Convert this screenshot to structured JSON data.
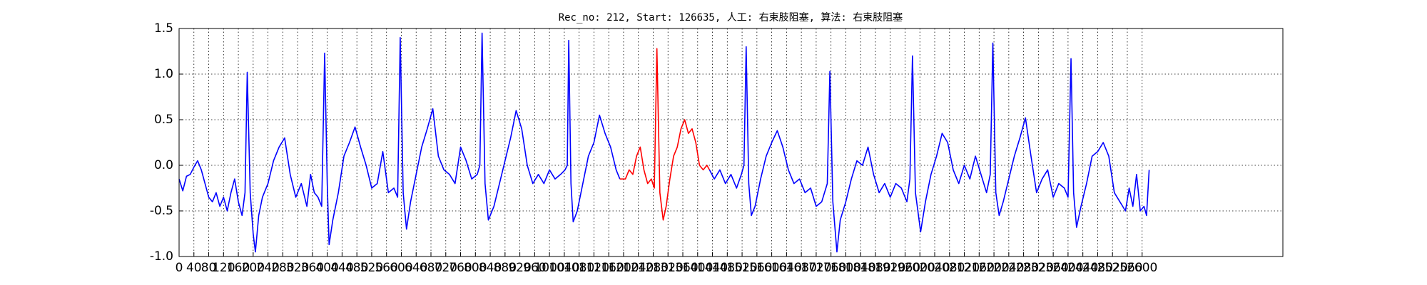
{
  "chart_data": {
    "type": "line",
    "title": "Rec_no: 212, Start: 126635, 人工: 右束肢阻塞, 算法: 右束肢阻塞",
    "grid": true,
    "xlim": [
      0,
      2980
    ],
    "ylim": [
      -1.0,
      1.5
    ],
    "yticks": [
      {
        "value": -1.0,
        "label": "-1.0"
      },
      -0.5,
      {
        "value": 0.0,
        "label": "0.0"
      },
      0.5,
      {
        "value": 1.0,
        "label": "1.0"
      },
      1.5
    ],
    "xticks": [
      0,
      40,
      80,
      120,
      160,
      200,
      240,
      280,
      320,
      360,
      400,
      440,
      480,
      520,
      560,
      600,
      640,
      680,
      720,
      760,
      800,
      840,
      880,
      920,
      960,
      1000,
      1040,
      1080,
      1120,
      1160,
      1200,
      1240,
      1280,
      1320,
      1360,
      1400,
      1440,
      1480,
      1520,
      1560,
      1600,
      1640,
      1680,
      1720,
      1760,
      1800,
      1840,
      1880,
      1920,
      1960,
      2000,
      2040,
      2080,
      2120,
      2160,
      2200,
      2240,
      2280,
      2320,
      2360,
      2400,
      2440,
      2480,
      2520,
      2560,
      2600
    ],
    "series": [
      {
        "color": "#0000ff",
        "x": [
          0,
          10,
          20,
          30,
          40,
          50,
          60,
          70,
          80,
          90,
          100,
          110,
          120,
          130,
          140,
          150,
          160,
          170,
          178,
          184,
          192,
          200,
          206,
          215,
          225,
          240,
          255,
          270,
          285,
          300,
          315,
          330,
          345,
          355,
          365,
          375,
          385,
          393,
          400,
          405,
          415,
          430,
          445,
          460,
          475,
          490,
          505,
          520,
          535,
          550,
          565,
          580,
          590,
          597,
          605,
          614,
          625,
          640,
          655,
          670,
          685,
          700,
          715,
          730,
          745,
          760,
          775,
          790,
          805,
          812,
          818,
          826,
          835,
          850,
          865,
          880,
          895,
          910,
          925,
          940,
          955,
          970,
          985,
          1000,
          1015,
          1030,
          1042,
          1048,
          1052,
          1058,
          1064,
          1075,
          1090,
          1105,
          1120,
          1135,
          1150,
          1165,
          1180,
          1190
        ],
        "values": [
          -0.15,
          -0.28,
          -0.12,
          -0.1,
          -0.02,
          0.05,
          -0.05,
          -0.2,
          -0.35,
          -0.4,
          -0.3,
          -0.45,
          -0.35,
          -0.5,
          -0.3,
          -0.15,
          -0.4,
          -0.55,
          -0.3,
          1.02,
          -0.3,
          -0.75,
          -0.95,
          -0.55,
          -0.35,
          -0.2,
          0.05,
          0.2,
          0.3,
          -0.1,
          -0.35,
          -0.2,
          -0.45,
          -0.1,
          -0.3,
          -0.35,
          -0.45,
          1.23,
          -0.2,
          -0.87,
          -0.6,
          -0.3,
          0.1,
          0.25,
          0.42,
          0.2,
          0.0,
          -0.25,
          -0.2,
          0.15,
          -0.3,
          -0.25,
          -0.35,
          1.4,
          -0.3,
          -0.7,
          -0.4,
          -0.1,
          0.2,
          0.4,
          0.62,
          0.1,
          -0.05,
          -0.1,
          -0.2,
          0.2,
          0.05,
          -0.15,
          -0.1,
          0.0,
          1.45,
          -0.2,
          -0.6,
          -0.45,
          -0.2,
          0.05,
          0.3,
          0.6,
          0.4,
          0.0,
          -0.2,
          -0.1,
          -0.2,
          -0.05,
          -0.15,
          -0.1,
          -0.05,
          0.0,
          1.37,
          -0.2,
          -0.62,
          -0.5,
          -0.2,
          0.1,
          0.25,
          0.55,
          0.35,
          0.2,
          -0.05,
          -0.15
        ]
      },
      {
        "color": "#ff0000",
        "x": [
          1190,
          1205,
          1215,
          1225,
          1235,
          1245,
          1255,
          1265,
          1275,
          1283,
          1290,
          1298,
          1307,
          1315,
          1325,
          1335,
          1345,
          1355,
          1365,
          1375,
          1385,
          1395,
          1405,
          1415,
          1425,
          1432
        ],
        "values": [
          -0.15,
          -0.15,
          -0.05,
          -0.1,
          0.1,
          0.2,
          -0.05,
          -0.2,
          -0.15,
          -0.25,
          1.28,
          -0.3,
          -0.6,
          -0.45,
          -0.15,
          0.1,
          0.2,
          0.4,
          0.5,
          0.35,
          0.4,
          0.25,
          0.0,
          -0.05,
          0.0,
          -0.05
        ]
      },
      {
        "color": "#0000ff",
        "x": [
          1432,
          1445,
          1460,
          1475,
          1490,
          1505,
          1518,
          1525,
          1531,
          1538,
          1545,
          1555,
          1570,
          1585,
          1600,
          1615,
          1630,
          1645,
          1660,
          1675,
          1690,
          1705,
          1720,
          1735,
          1750,
          1757,
          1765,
          1776,
          1785,
          1800,
          1815,
          1830,
          1845,
          1860,
          1875,
          1890,
          1905,
          1920,
          1935,
          1950,
          1965,
          1973,
          1980,
          1988,
          2002,
          2015,
          2030,
          2045,
          2060,
          2075,
          2090,
          2105,
          2120,
          2135,
          2150,
          2165,
          2180,
          2190,
          2197,
          2205,
          2214,
          2225,
          2240,
          2255,
          2270,
          2285,
          2300,
          2315,
          2330,
          2345,
          2360,
          2375,
          2390,
          2400,
          2408,
          2415,
          2423,
          2435,
          2450,
          2465,
          2480,
          2495,
          2510,
          2525,
          2540,
          2555,
          2565,
          2575,
          2585,
          2595,
          2605,
          2612,
          2619
        ],
        "values": [
          -0.05,
          -0.15,
          -0.05,
          -0.2,
          -0.1,
          -0.25,
          -0.1,
          0.0,
          1.3,
          -0.2,
          -0.55,
          -0.45,
          -0.15,
          0.1,
          0.25,
          0.38,
          0.2,
          -0.05,
          -0.2,
          -0.15,
          -0.3,
          -0.25,
          -0.45,
          -0.4,
          -0.2,
          1.03,
          -0.4,
          -0.95,
          -0.6,
          -0.4,
          -0.15,
          0.05,
          0.0,
          0.2,
          -0.1,
          -0.3,
          -0.2,
          -0.35,
          -0.2,
          -0.25,
          -0.4,
          -0.15,
          1.2,
          -0.3,
          -0.73,
          -0.4,
          -0.1,
          0.1,
          0.35,
          0.25,
          -0.05,
          -0.2,
          0.0,
          -0.15,
          0.1,
          -0.1,
          -0.3,
          -0.1,
          1.34,
          -0.3,
          -0.55,
          -0.4,
          -0.15,
          0.1,
          0.3,
          0.52,
          0.1,
          -0.3,
          -0.15,
          -0.05,
          -0.35,
          -0.2,
          -0.25,
          -0.35,
          1.17,
          -0.3,
          -0.68,
          -0.45,
          -0.2,
          0.1,
          0.15,
          0.25,
          0.1,
          -0.3,
          -0.4,
          -0.5,
          -0.25,
          -0.45,
          -0.1,
          -0.5,
          -0.45,
          -0.55,
          -0.05
        ]
      }
    ]
  }
}
